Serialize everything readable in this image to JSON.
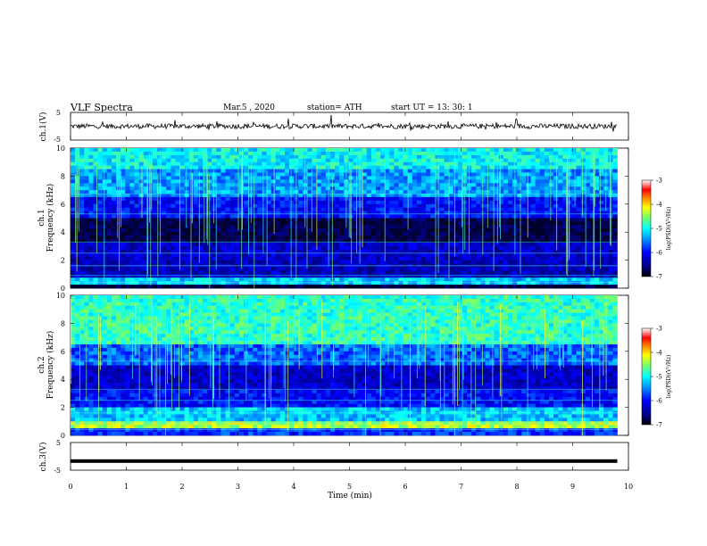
{
  "header": {
    "title": "VLF  Spectra",
    "date": "Mar.5  , 2020",
    "station": "station= ATH",
    "start": "start  UT  =    13: 30: 1"
  },
  "chart_data": [
    {
      "type": "line",
      "ylabel": "ch.1(V)",
      "ylim": [
        -5,
        5
      ],
      "yticks": [
        "5",
        "-5"
      ],
      "description_values": {
        "mean": 0,
        "noise": 1.5
      }
    },
    {
      "type": "heatmap",
      "ylabel_line1": "ch.1",
      "ylabel_line2": "Frequency  (kHz)",
      "ylim": [
        0,
        10
      ],
      "yticks": [
        "0",
        "2",
        "4",
        "6",
        "8",
        "10"
      ],
      "colorbar": {
        "label": "log(PSD)(V²/Hz)",
        "range": [
          -7,
          -3
        ],
        "ticks": [
          "-3",
          "-4",
          "-5",
          "-6",
          "-7"
        ]
      }
    },
    {
      "type": "heatmap",
      "ylabel_line1": "ch.2",
      "ylabel_line2": "Frequency  (kHz)",
      "ylim": [
        0,
        10
      ],
      "yticks": [
        "0",
        "2",
        "4",
        "6",
        "8",
        "10"
      ],
      "colorbar": {
        "label": "log(PSD)(V²/Hz)",
        "range": [
          -7,
          -3
        ],
        "ticks": [
          "-3",
          "-4",
          "-5",
          "-6",
          "-7"
        ]
      }
    },
    {
      "type": "line",
      "ylabel": "ch.3(V)",
      "ylim": [
        -5,
        5
      ],
      "yticks": [
        "5",
        "-5"
      ],
      "description_values": {
        "level": -1.7
      }
    }
  ],
  "xaxis": {
    "label": "Time  (min)",
    "ticks": [
      "0",
      "1",
      "2",
      "3",
      "4",
      "5",
      "6",
      "7",
      "8",
      "9",
      "10"
    ],
    "xlim": [
      0,
      10
    ],
    "data_end": 9.8
  },
  "colors": {
    "jet": [
      "#000080",
      "#0000ff",
      "#0080ff",
      "#00ffff",
      "#80ff80",
      "#ffff00",
      "#ff8000",
      "#ff0000",
      "#ffffff"
    ]
  }
}
